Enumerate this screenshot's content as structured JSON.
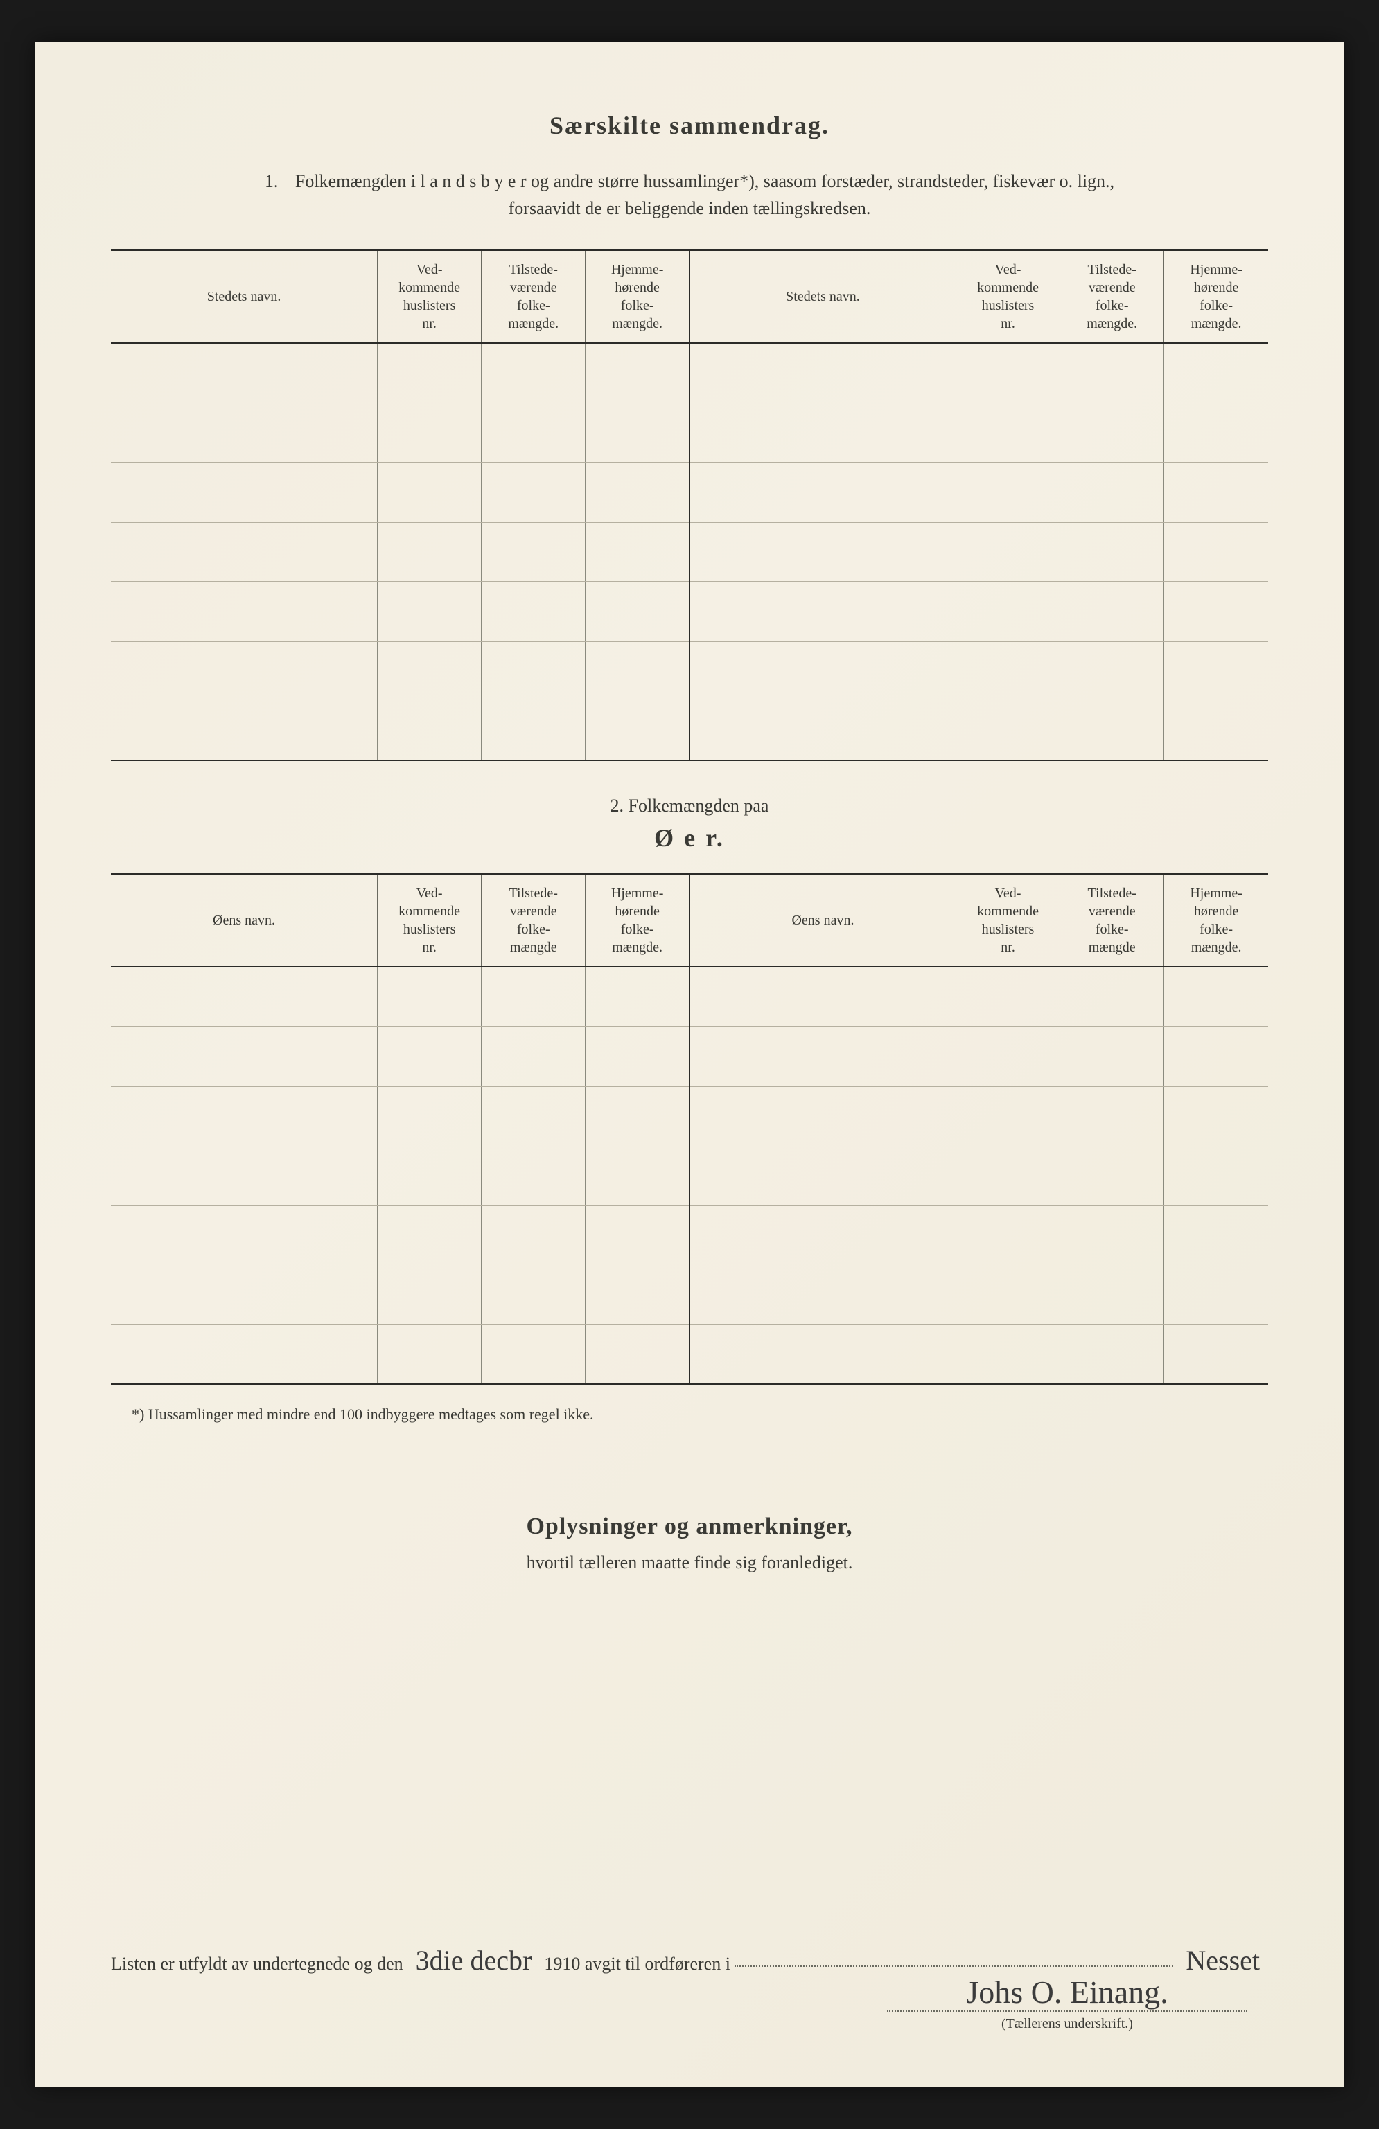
{
  "title": "Særskilte sammendrag.",
  "section1": {
    "num": "1.",
    "line1": "Folkemængden i  l a n d s b y e r  og andre større hussamlinger*), saasom forstæder, strandsteder, fiskevær o. lign.,",
    "line2": "forsaavidt de er beliggende inden tællingskredsen."
  },
  "headers": {
    "name": "Stedets navn.",
    "col1": "Ved-\nkommende\nhuslisters\nnr.",
    "col2": "Tilstede-\nværende\nfolke-\nmængde.",
    "col3": "Hjemme-\nhørende\nfolke-\nmængde."
  },
  "section2": {
    "lead": "2.    Folkemængden paa",
    "title": "Ø e r."
  },
  "headers2": {
    "name": "Øens navn.",
    "col1": "Ved-\nkommende\nhuslisters\nnr.",
    "col2": "Tilstede-\nværende\nfolke-\nmængde",
    "col3": "Hjemme-\nhørende\nfolke-\nmængde."
  },
  "footnote": "*)  Hussamlinger med mindre end 100 indbyggere medtages som regel ikke.",
  "oplys": {
    "title": "Oplysninger og anmerkninger,",
    "sub": "hvortil tælleren maatte finde sig foranlediget."
  },
  "signline": {
    "pre": "Listen er utfyldt av undertegnede og den",
    "date_hand": "3die decbr",
    "mid": "1910 avgit til ordføreren i",
    "place_hand": "Nesset"
  },
  "signature": {
    "hand": "Johs O. Einang.",
    "caption": "(Tællerens underskrift.)"
  },
  "table1_rows": 7,
  "table2_rows": 7,
  "colors": {
    "page_bg": "#f2ede0",
    "ink": "#3a3a35",
    "rule_heavy": "#2b2b28",
    "rule_light": "#8a8a7e"
  }
}
